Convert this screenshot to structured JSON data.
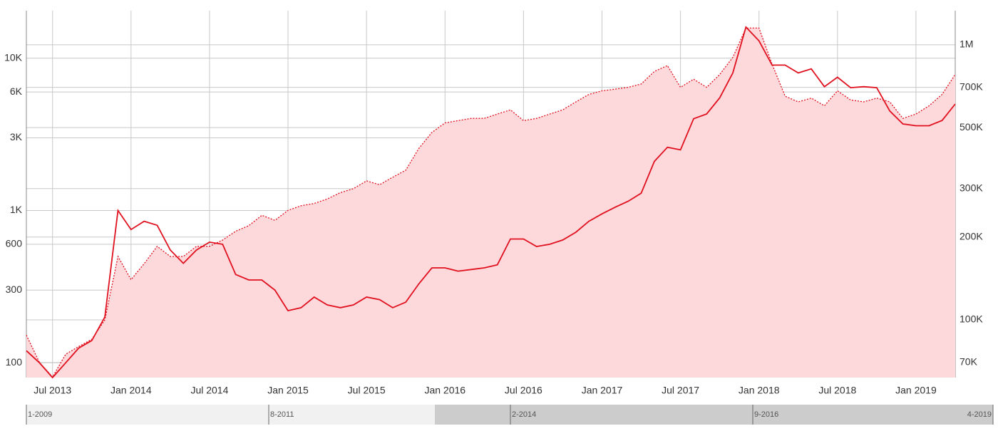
{
  "chart_data": {
    "type": "line",
    "x": [
      "2013-05",
      "2013-06",
      "2013-07",
      "2013-08",
      "2013-09",
      "2013-10",
      "2013-11",
      "2013-12",
      "2014-01",
      "2014-02",
      "2014-03",
      "2014-04",
      "2014-05",
      "2014-06",
      "2014-07",
      "2014-08",
      "2014-09",
      "2014-10",
      "2014-11",
      "2014-12",
      "2015-01",
      "2015-02",
      "2015-03",
      "2015-04",
      "2015-05",
      "2015-06",
      "2015-07",
      "2015-08",
      "2015-09",
      "2015-10",
      "2015-11",
      "2015-12",
      "2016-01",
      "2016-02",
      "2016-03",
      "2016-04",
      "2016-05",
      "2016-06",
      "2016-07",
      "2016-08",
      "2016-09",
      "2016-10",
      "2016-11",
      "2016-12",
      "2017-01",
      "2017-02",
      "2017-03",
      "2017-04",
      "2017-05",
      "2017-06",
      "2017-07",
      "2017-08",
      "2017-09",
      "2017-10",
      "2017-11",
      "2017-12",
      "2018-01",
      "2018-02",
      "2018-03",
      "2018-04",
      "2018-05",
      "2018-06",
      "2018-07",
      "2018-08",
      "2018-09",
      "2018-10",
      "2018-11",
      "2018-12",
      "2019-01",
      "2019-02",
      "2019-03",
      "2019-04"
    ],
    "series": [
      {
        "color": "#e0101e",
        "dash": false,
        "values": [
          120,
          100,
          80,
          100,
          125,
          140,
          200,
          1000,
          750,
          850,
          800,
          550,
          450,
          550,
          620,
          600,
          380,
          350,
          350,
          300,
          220,
          230,
          270,
          240,
          230,
          240,
          270,
          260,
          230,
          250,
          330,
          420,
          420,
          400,
          410,
          420,
          440,
          650,
          650,
          580,
          600,
          640,
          720,
          850,
          950,
          1050,
          1150,
          1300,
          2100,
          2600,
          2500,
          4000,
          4300,
          5500,
          8000,
          16000,
          13000,
          9000,
          9000,
          8000,
          8500,
          6500,
          7500,
          6400,
          6500,
          6400,
          4500,
          3700,
          3600,
          3600,
          3900,
          5000
        ]
      },
      {
        "color": "#e0101e",
        "dash": true,
        "fill": "#fdd9dc",
        "axis": "y2",
        "values": [
          88000,
          70000,
          62000,
          75000,
          80000,
          85000,
          100000,
          170000,
          140000,
          160000,
          185000,
          170000,
          170000,
          185000,
          185000,
          195000,
          210000,
          220000,
          240000,
          230000,
          250000,
          260000,
          265000,
          275000,
          290000,
          300000,
          320000,
          310000,
          330000,
          350000,
          420000,
          480000,
          520000,
          530000,
          540000,
          540000,
          560000,
          580000,
          530000,
          540000,
          560000,
          580000,
          620000,
          660000,
          680000,
          690000,
          700000,
          720000,
          800000,
          840000,
          700000,
          750000,
          700000,
          780000,
          900000,
          1150000,
          1150000,
          850000,
          650000,
          620000,
          640000,
          600000,
          680000,
          630000,
          620000,
          640000,
          620000,
          540000,
          560000,
          600000,
          660000,
          780000
        ]
      }
    ],
    "xlim": [
      "2013-05",
      "2019-04"
    ],
    "xticks": [
      {
        "value": "2013-07",
        "label": "Jul 2013"
      },
      {
        "value": "2014-01",
        "label": "Jan 2014"
      },
      {
        "value": "2014-07",
        "label": "Jul 2014"
      },
      {
        "value": "2015-01",
        "label": "Jan 2015"
      },
      {
        "value": "2015-07",
        "label": "Jul 2015"
      },
      {
        "value": "2016-01",
        "label": "Jan 2016"
      },
      {
        "value": "2016-07",
        "label": "Jul 2016"
      },
      {
        "value": "2017-01",
        "label": "Jan 2017"
      },
      {
        "value": "2017-07",
        "label": "Jul 2017"
      },
      {
        "value": "2018-01",
        "label": "Jan 2018"
      },
      {
        "value": "2018-07",
        "label": "Jul 2018"
      },
      {
        "value": "2019-01",
        "label": "Jan 2019"
      }
    ],
    "ylim": [
      80,
      20500
    ],
    "ylog": true,
    "yticks": [
      100,
      300,
      600,
      {
        "value": 1000,
        "label": "1K"
      },
      {
        "value": 3000,
        "label": "3K"
      },
      {
        "value": 6000,
        "label": "6K"
      },
      {
        "value": 10000,
        "label": "10K"
      }
    ],
    "y2lim": [
      61700,
      1330000
    ],
    "y2log": true,
    "y2ticks": [
      {
        "value": 70000,
        "label": "70K"
      },
      {
        "value": 100000,
        "label": "100K"
      },
      {
        "value": 200000,
        "label": "200K"
      },
      {
        "value": 300000,
        "label": "300K"
      },
      {
        "value": 500000,
        "label": "500K"
      },
      {
        "value": 700000,
        "label": "700K"
      },
      {
        "value": 1000000,
        "label": "1M"
      }
    ],
    "grid": true
  },
  "navigator": {
    "labels": [
      "1-2009",
      "8-2011",
      "2-2014",
      "9-2016",
      "4-2019"
    ]
  }
}
